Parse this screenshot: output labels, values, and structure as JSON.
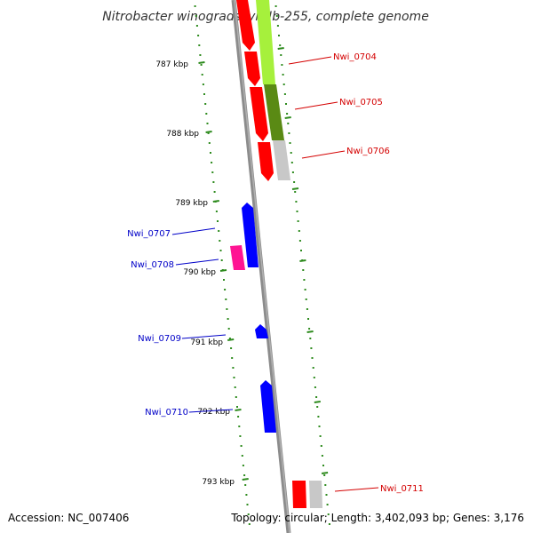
{
  "title": "Nitrobacter winogradskyi Nb-255, complete genome",
  "accession": "Accession: NC_007406",
  "topology": "Topology: circular; Length: 3,402,093 bp; Genes: 3,176",
  "colors": {
    "background": "#ffffff",
    "backbone": "#8c8c8c",
    "tick": "#2e8b1e",
    "gene_red": "#ff0000",
    "gene_blue": "#0000ff",
    "gene_magenta": "#ff1493",
    "gene_lime": "#a6f03c",
    "gene_olive": "#5a8a14",
    "gene_gray": "#c8c8c8",
    "label_red": "#d40000",
    "label_blue": "#0000c8"
  },
  "kbp_labels": [
    "787 kbp",
    "788 kbp",
    "789 kbp",
    "790 kbp",
    "791 kbp",
    "792 kbp",
    "793 kbp"
  ],
  "genes": [
    {
      "label": "Nwi_0704",
      "color": "red"
    },
    {
      "label": "Nwi_0705",
      "color": "red"
    },
    {
      "label": "Nwi_0706",
      "color": "red"
    },
    {
      "label": "Nwi_0707",
      "color": "blue"
    },
    {
      "label": "Nwi_0708",
      "color": "blue"
    },
    {
      "label": "Nwi_0709",
      "color": "blue"
    },
    {
      "label": "Nwi_0710",
      "color": "blue"
    },
    {
      "label": "Nwi_0711",
      "color": "red"
    }
  ]
}
